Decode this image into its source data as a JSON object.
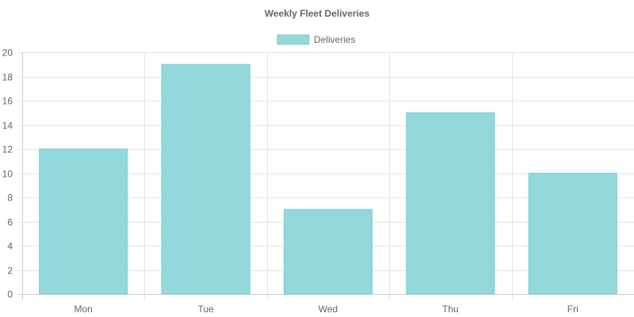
{
  "chart_data": {
    "type": "bar",
    "title": "Weekly Fleet Deliveries",
    "categories": [
      "Mon",
      "Tue",
      "Wed",
      "Thu",
      "Fri"
    ],
    "series": [
      {
        "name": "Deliveries",
        "values": [
          12,
          19,
          7,
          15,
          10
        ]
      }
    ],
    "ylim": [
      0,
      20
    ],
    "yticks": [
      0,
      2,
      4,
      6,
      8,
      10,
      12,
      14,
      16,
      18,
      20
    ],
    "grid": true,
    "legend_position": "top",
    "colors": {
      "bar_fill": "#93d8da",
      "bar_stroke": "#7fcfd2"
    }
  }
}
